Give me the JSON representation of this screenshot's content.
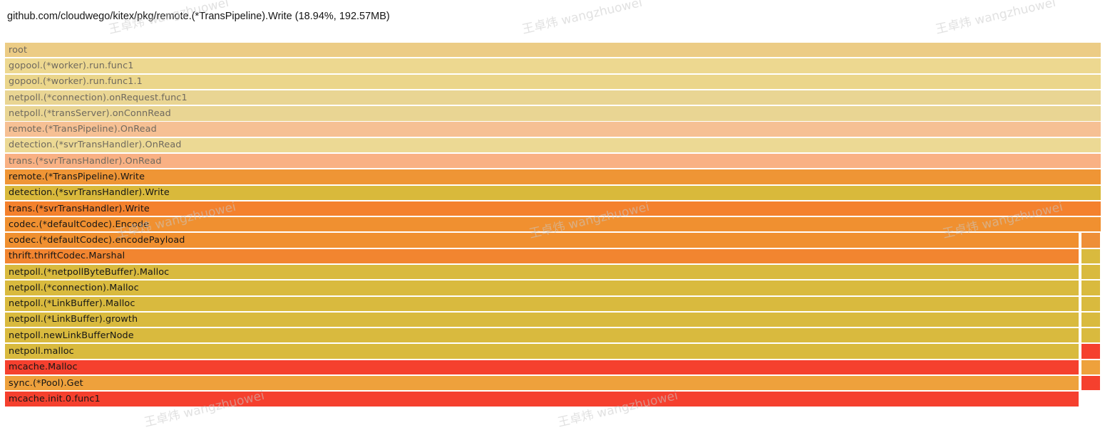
{
  "title": "github.com/cloudwego/kitex/pkg/remote.(*TransPipeline).Write (18.94%, 192.57MB)",
  "watermark_text": "王卓炜 wangzhuowei",
  "colors": {
    "background": "#ffffff",
    "active_label": "#161616",
    "faded_label": "#6f695e",
    "watermark": "rgba(200,200,200,0.55)"
  },
  "chart_data": {
    "type": "flamegraph",
    "selected_frame": "remote.(*TransPipeline).Write",
    "selected_percent": "18.94%",
    "selected_size": "192.57MB",
    "frames": [
      {
        "label": "root",
        "color": "#eccc85",
        "faded": true,
        "span": "full"
      },
      {
        "label": "gopool.(*worker).run.func1",
        "color": "#edd890",
        "faded": true,
        "span": "full"
      },
      {
        "label": "gopool.(*worker).run.func1.1",
        "color": "#ebd68b",
        "faded": true,
        "span": "full"
      },
      {
        "label": "netpoll.(*connection).onRequest.func1",
        "color": "#e9d593",
        "faded": true,
        "span": "full"
      },
      {
        "label": "netpoll.(*transServer).onConnRead",
        "color": "#e9d593",
        "faded": true,
        "span": "full"
      },
      {
        "label": "remote.(*TransPipeline).OnRead",
        "color": "#f6c094",
        "faded": true,
        "span": "full"
      },
      {
        "label": "detection.(*svrTransHandler).OnRead",
        "color": "#ecd994",
        "faded": true,
        "span": "full"
      },
      {
        "label": "trans.(*svrTransHandler).OnRead",
        "color": "#f9b184",
        "faded": true,
        "span": "full"
      },
      {
        "label": "remote.(*TransPipeline).Write",
        "color": "#ef9535",
        "faded": false,
        "span": "full"
      },
      {
        "label": "detection.(*svrTransHandler).Write",
        "color": "#d9b93b",
        "faded": false,
        "span": "full"
      },
      {
        "label": "trans.(*svrTransHandler).Write",
        "color": "#f4812d",
        "faded": false,
        "span": "full"
      },
      {
        "label": "codec.(*defaultCodec).Encode",
        "color": "#f09030",
        "faded": false,
        "span": "full"
      },
      {
        "label": "codec.(*defaultCodec).encodePayload",
        "color": "#f09030",
        "faded": false,
        "span": "split",
        "sibling_color": "#ee8f38"
      },
      {
        "label": "thrift.thriftCodec.Marshal",
        "color": "#f28530",
        "faded": false,
        "span": "split",
        "sibling_color": "#d9ba3e"
      },
      {
        "label": "netpoll.(*netpollByteBuffer).Malloc",
        "color": "#d9ba3e",
        "faded": false,
        "span": "split",
        "sibling_color": "#d9ba3e"
      },
      {
        "label": "netpoll.(*connection).Malloc",
        "color": "#d9ba3e",
        "faded": false,
        "span": "split",
        "sibling_color": "#d9ba3e"
      },
      {
        "label": "netpoll.(*LinkBuffer).Malloc",
        "color": "#d9ba3e",
        "faded": false,
        "span": "split",
        "sibling_color": "#d9ba3e"
      },
      {
        "label": "netpoll.(*LinkBuffer).growth",
        "color": "#d9ba3e",
        "faded": false,
        "span": "split",
        "sibling_color": "#d9ba3e"
      },
      {
        "label": "netpoll.newLinkBufferNode",
        "color": "#d9ba3e",
        "faded": false,
        "span": "split",
        "sibling_color": "#d9ba3e"
      },
      {
        "label": "netpoll.malloc",
        "color": "#d9ba3e",
        "faded": false,
        "span": "split",
        "sibling_color": "#f5402e"
      },
      {
        "label": "mcache.Malloc",
        "color": "#f5402e",
        "faded": false,
        "span": "split",
        "sibling_color": "#eea13c"
      },
      {
        "label": "sync.(*Pool).Get",
        "color": "#eea13c",
        "faded": false,
        "span": "split",
        "sibling_color": "#f5402e"
      },
      {
        "label": "mcache.init.0.func1",
        "color": "#f5402e",
        "faded": false,
        "span": "wide"
      }
    ]
  }
}
